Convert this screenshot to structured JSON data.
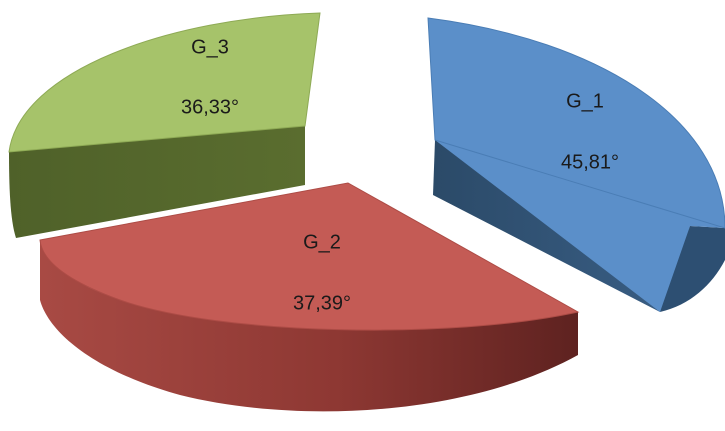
{
  "chart_data": {
    "type": "pie",
    "style": "3d-exploded",
    "title": "",
    "legend": "none",
    "slices": [
      {
        "id": "g1",
        "name": "G_1",
        "value": 45.81,
        "value_label": "45,81°",
        "color": "#5b8fc9"
      },
      {
        "id": "g2",
        "name": "G_2",
        "value": 37.39,
        "value_label": "37,39°",
        "color": "#c45b55"
      },
      {
        "id": "g3",
        "name": "G_3",
        "value": 36.33,
        "value_label": "36,33°",
        "color": "#a6c36a"
      }
    ]
  }
}
